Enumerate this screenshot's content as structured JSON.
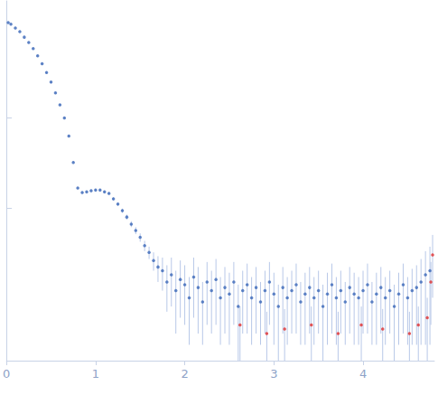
{
  "chart_data": {
    "type": "scatter",
    "log": "y",
    "grid": false,
    "tick_labels": "x",
    "xlim": [
      0,
      4.8
    ],
    "xticks": [
      0,
      1,
      2,
      3,
      4
    ],
    "ylim": [
      0.02,
      200
    ],
    "yticks": [
      1,
      10
    ],
    "series": [
      {
        "color": "#3a66b8",
        "marker": "circle",
        "x": [
          0.02,
          0.05,
          0.1,
          0.15,
          0.2,
          0.25,
          0.3,
          0.35,
          0.4,
          0.45,
          0.5,
          0.55,
          0.6,
          0.65,
          0.7,
          0.75,
          0.8,
          0.85,
          0.9,
          0.95,
          1.0,
          1.05,
          1.1,
          1.15,
          1.2,
          1.25,
          1.3,
          1.35,
          1.4,
          1.45,
          1.5,
          1.55,
          1.6,
          1.65,
          1.7,
          1.75,
          1.8,
          1.85,
          1.9,
          1.95,
          2.0,
          2.05,
          2.1,
          2.15,
          2.2,
          2.25,
          2.3,
          2.35,
          2.4,
          2.45,
          2.5,
          2.55,
          2.6,
          2.65,
          2.7,
          2.75,
          2.8,
          2.85,
          2.9,
          2.95,
          3.0,
          3.05,
          3.1,
          3.15,
          3.2,
          3.25,
          3.3,
          3.35,
          3.4,
          3.45,
          3.5,
          3.55,
          3.6,
          3.65,
          3.7,
          3.75,
          3.8,
          3.85,
          3.9,
          3.95,
          4.0,
          4.05,
          4.1,
          4.15,
          4.2,
          4.25,
          4.3,
          4.35,
          4.4,
          4.45,
          4.5,
          4.55,
          4.6,
          4.65,
          4.7,
          4.75
        ],
        "values": [
          115,
          110,
          100,
          91,
          79,
          69,
          59,
          49,
          40,
          32,
          25,
          19,
          14,
          10,
          6.3,
          3.2,
          1.66,
          1.48,
          1.51,
          1.55,
          1.58,
          1.58,
          1.51,
          1.45,
          1.26,
          1.1,
          0.93,
          0.79,
          0.66,
          0.56,
          0.47,
          0.38,
          0.32,
          0.26,
          0.22,
          0.2,
          0.15,
          0.18,
          0.12,
          0.16,
          0.14,
          0.1,
          0.17,
          0.13,
          0.09,
          0.15,
          0.12,
          0.16,
          0.1,
          0.13,
          0.11,
          0.15,
          0.08,
          0.12,
          0.14,
          0.1,
          0.13,
          0.09,
          0.12,
          0.15,
          0.11,
          0.08,
          0.13,
          0.1,
          0.12,
          0.14,
          0.09,
          0.11,
          0.13,
          0.1,
          0.12,
          0.08,
          0.11,
          0.14,
          0.1,
          0.12,
          0.09,
          0.13,
          0.11,
          0.1,
          0.12,
          0.14,
          0.09,
          0.11,
          0.13,
          0.1,
          0.12,
          0.08,
          0.11,
          0.14,
          0.1,
          0.12,
          0.13,
          0.15,
          0.18,
          0.2
        ],
        "errors": [
          1,
          1,
          1,
          1,
          1,
          1,
          1,
          1,
          0.8,
          0.7,
          0.5,
          0.4,
          0.3,
          0.2,
          0.13,
          0.07,
          0.04,
          0.04,
          0.04,
          0.05,
          0.05,
          0.05,
          0.05,
          0.05,
          0.05,
          0.05,
          0.05,
          0.05,
          0.05,
          0.05,
          0.05,
          0.05,
          0.05,
          0.06,
          0.07,
          0.08,
          0.08,
          0.1,
          0.08,
          0.1,
          0.09,
          0.07,
          0.11,
          0.09,
          0.06,
          0.1,
          0.08,
          0.11,
          0.07,
          0.09,
          0.08,
          0.1,
          0.06,
          0.08,
          0.1,
          0.07,
          0.09,
          0.06,
          0.08,
          0.1,
          0.08,
          0.06,
          0.09,
          0.07,
          0.08,
          0.1,
          0.06,
          0.08,
          0.09,
          0.07,
          0.08,
          0.06,
          0.08,
          0.1,
          0.07,
          0.08,
          0.06,
          0.09,
          0.08,
          0.07,
          0.08,
          0.1,
          0.06,
          0.08,
          0.09,
          0.07,
          0.08,
          0.06,
          0.08,
          0.1,
          0.07,
          0.09,
          0.1,
          0.12,
          0.15,
          0.17
        ]
      },
      {
        "color": "#e03030",
        "marker": "circle",
        "x": [
          2.62,
          2.92,
          3.12,
          3.42,
          3.72,
          3.98,
          4.22,
          4.52,
          4.62,
          4.72,
          4.76,
          4.78
        ],
        "values": [
          0.05,
          0.04,
          0.045,
          0.05,
          0.04,
          0.05,
          0.045,
          0.04,
          0.05,
          0.06,
          0.15,
          0.3
        ],
        "errors": [
          0.03,
          0.03,
          0.03,
          0.03,
          0.03,
          0.03,
          0.03,
          0.03,
          0.03,
          0.04,
          0.1,
          0.2
        ]
      }
    ]
  }
}
